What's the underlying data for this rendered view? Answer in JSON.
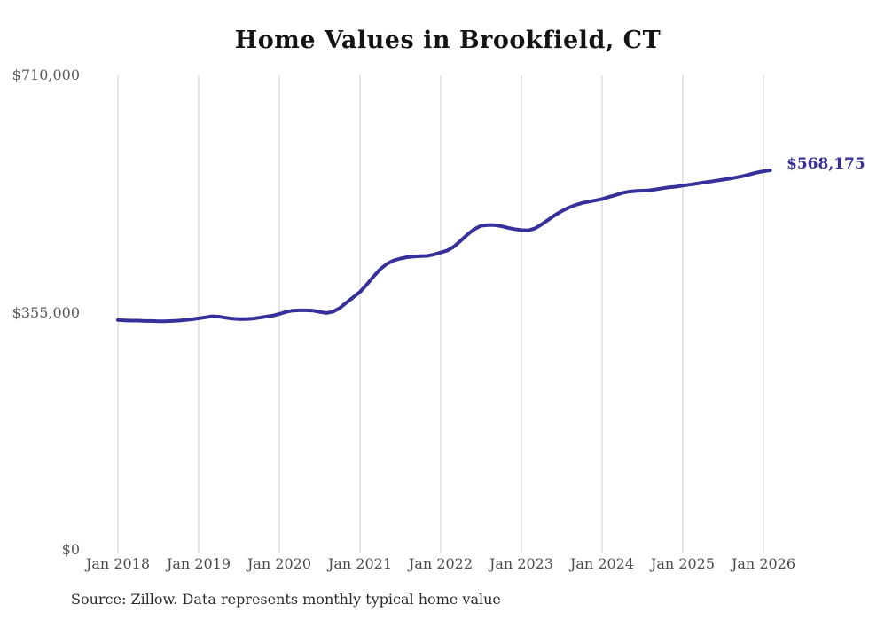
{
  "page": {
    "title": "Home Values in Brookfield, CT",
    "end_value_label": "$568,175",
    "source_note": "Source: Zillow. Data represents monthly typical home value"
  },
  "chart_data": {
    "type": "line",
    "title": "Home Values in Brookfield, CT",
    "xlabel": "",
    "ylabel": "",
    "x_tick_labels": [
      "Jan 2018",
      "Jan 2019",
      "Jan 2020",
      "Jan 2021",
      "Jan 2022",
      "Jan 2023",
      "Jan 2024",
      "Jan 2025",
      "Jan 2026"
    ],
    "y_tick_labels": [
      "$710,000",
      "$355,000",
      "$0"
    ],
    "yticks": [
      710000,
      355000,
      0
    ],
    "ylim": [
      0,
      710000
    ],
    "x_range": [
      "Jan 2018",
      "Feb 2026"
    ],
    "grid": "vertical-only",
    "grid_color": "#cccccc",
    "line_color": "#37309a",
    "legend": "none",
    "final_value": 568175,
    "final_value_label": "$568,175",
    "series": [
      {
        "name": "Typical home value (monthly)",
        "start_month": "2018-01",
        "end_month": "2026-02",
        "values": [
          344000,
          343500,
          343000,
          343000,
          342500,
          342500,
          342000,
          342000,
          342500,
          343000,
          344000,
          345000,
          346500,
          348000,
          349500,
          349000,
          347500,
          346000,
          345500,
          345500,
          346000,
          347500,
          349000,
          350500,
          353000,
          356000,
          358000,
          358500,
          358500,
          358000,
          356000,
          354500,
          356500,
          362000,
          370000,
          378000,
          386000,
          397000,
          409000,
          420000,
          428000,
          433000,
          436000,
          438000,
          439000,
          439500,
          440000,
          442000,
          445000,
          448000,
          454000,
          463000,
          472000,
          480000,
          485000,
          486000,
          486000,
          484500,
          482000,
          480000,
          478500,
          478000,
          481000,
          487000,
          494000,
          501000,
          507000,
          512000,
          516000,
          519000,
          521000,
          523000,
          525000,
          528000,
          531000,
          534000,
          536000,
          537000,
          537500,
          538000,
          539500,
          541000,
          542500,
          543500,
          545000,
          546500,
          548000,
          549500,
          551000,
          552500,
          554000,
          555500,
          557500,
          559500,
          562000,
          564500,
          566500,
          568175
        ]
      }
    ]
  }
}
